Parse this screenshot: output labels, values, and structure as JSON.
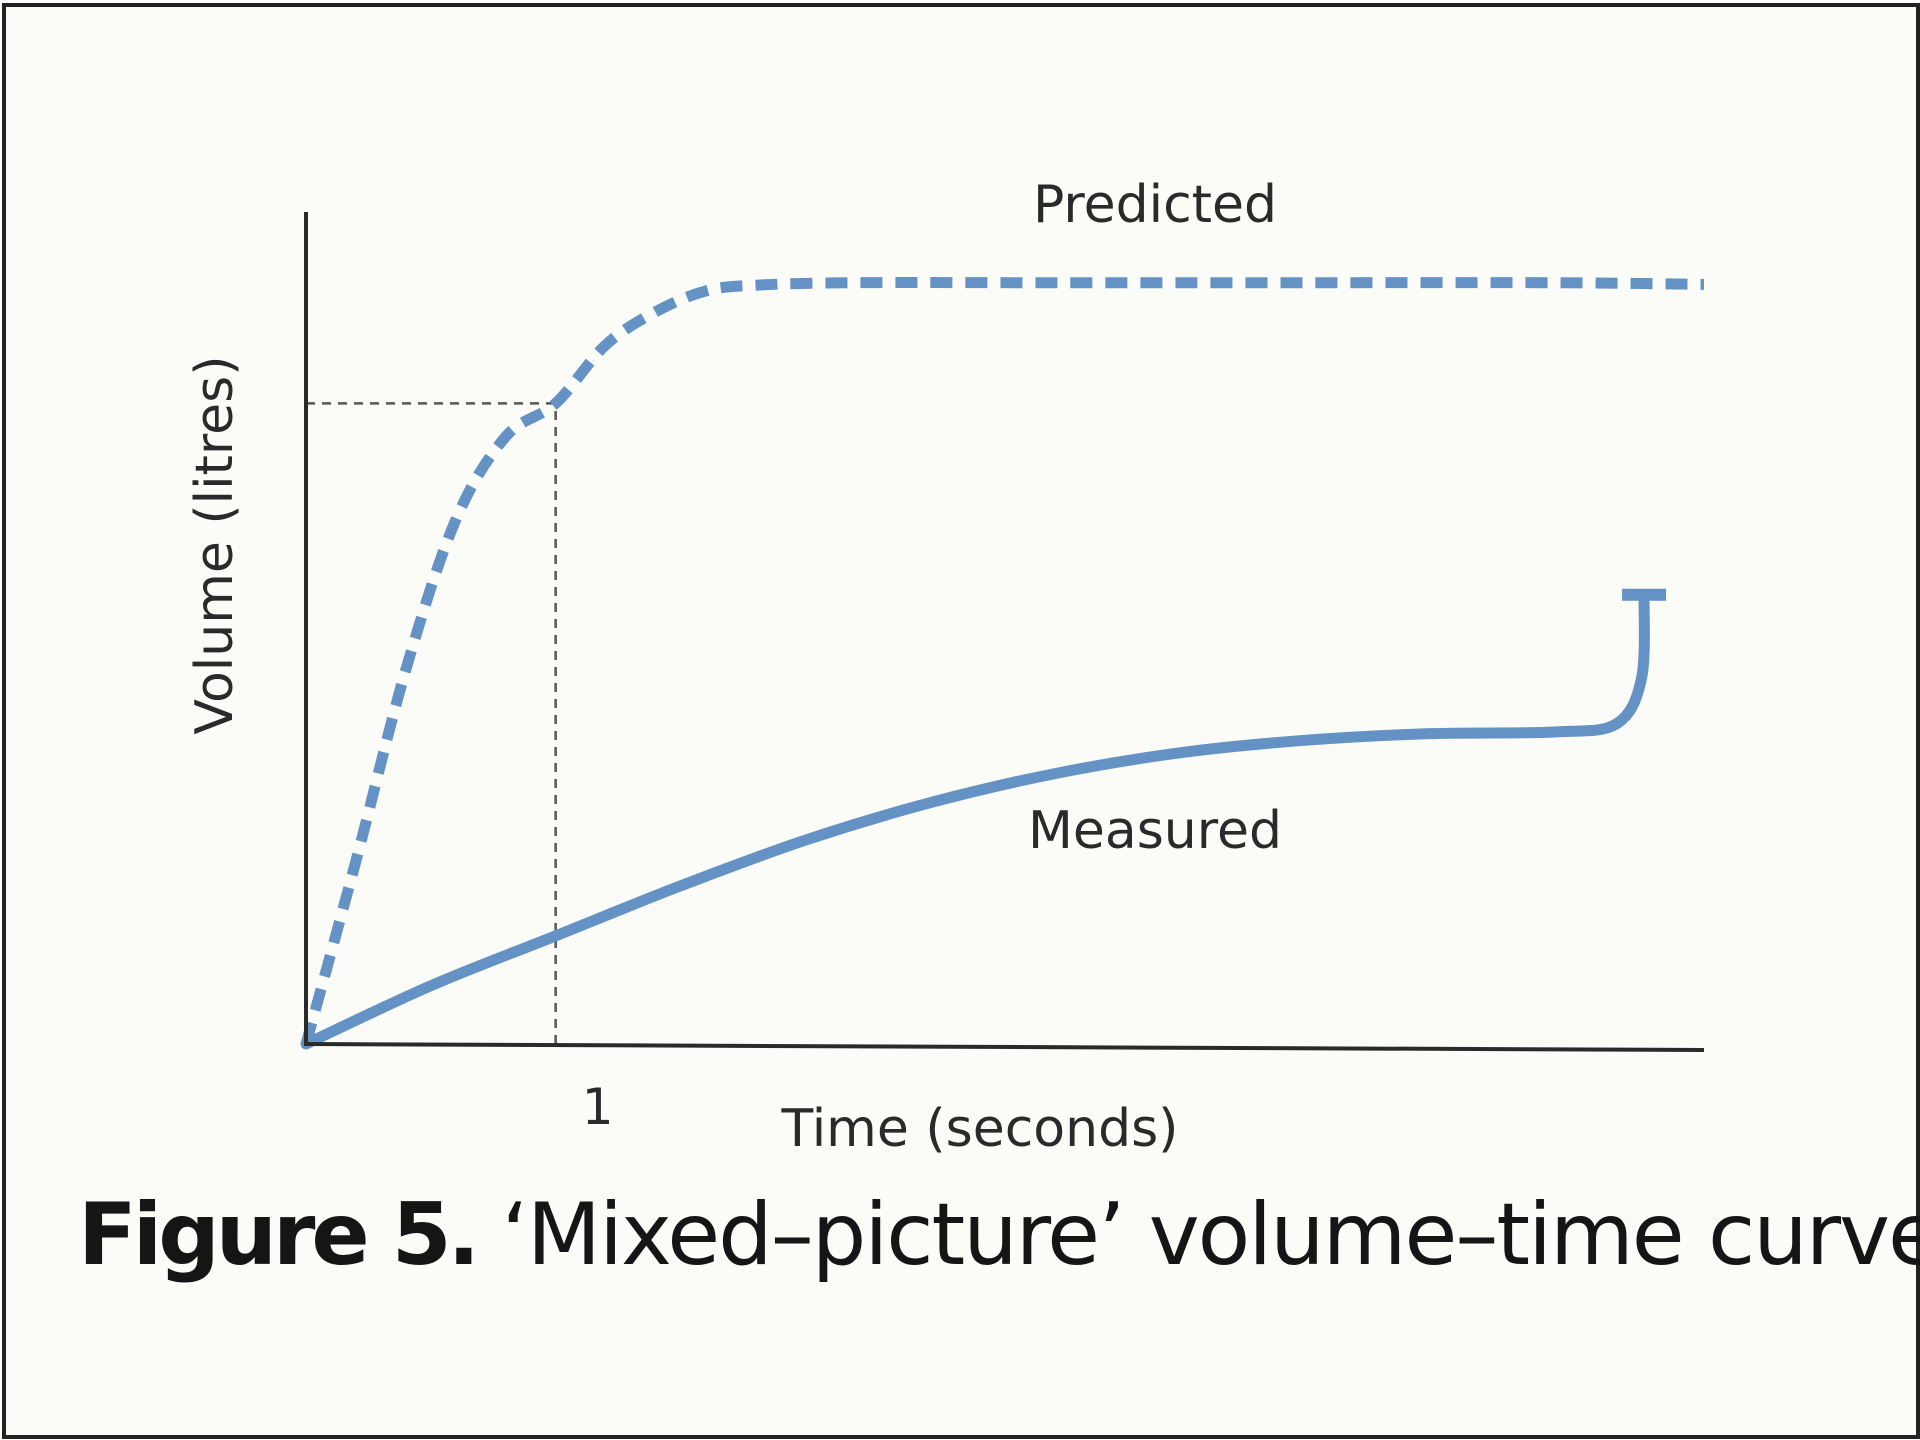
{
  "caption": {
    "label": "Figure 5.",
    "text": "‘Mixed–picture’ volume–time curve"
  },
  "colors": {
    "series": "#6592c4",
    "axis": "#2a2a2a",
    "guide": "#555555",
    "background": "#fbfcf7"
  },
  "chart_data": {
    "type": "line",
    "title": "",
    "xlabel": "Time (seconds)",
    "ylabel": "Volume (litres)",
    "xlim": [
      0,
      5.6
    ],
    "ylim": [
      0,
      1.0
    ],
    "x_ticks": [
      1
    ],
    "grid": false,
    "series": [
      {
        "name": "Predicted",
        "style": "dashed",
        "points": [
          [
            0,
            0
          ],
          [
            0.2,
            0.22
          ],
          [
            0.4,
            0.45
          ],
          [
            0.6,
            0.63
          ],
          [
            0.8,
            0.73
          ],
          [
            1.0,
            0.77
          ],
          [
            1.2,
            0.84
          ],
          [
            1.4,
            0.88
          ],
          [
            1.6,
            0.905
          ],
          [
            1.8,
            0.912
          ],
          [
            2.2,
            0.915
          ],
          [
            3.0,
            0.915
          ],
          [
            4.0,
            0.915
          ],
          [
            5.0,
            0.915
          ],
          [
            5.6,
            0.913
          ]
        ]
      },
      {
        "name": "Measured",
        "style": "solid",
        "points": [
          [
            0,
            0
          ],
          [
            0.5,
            0.07
          ],
          [
            1.0,
            0.13
          ],
          [
            1.5,
            0.19
          ],
          [
            2.0,
            0.245
          ],
          [
            2.5,
            0.29
          ],
          [
            3.0,
            0.325
          ],
          [
            3.5,
            0.35
          ],
          [
            4.0,
            0.365
          ],
          [
            4.5,
            0.373
          ],
          [
            5.0,
            0.375
          ],
          [
            5.25,
            0.385
          ],
          [
            5.35,
            0.44
          ],
          [
            5.36,
            0.54
          ]
        ],
        "end_marker": "bar"
      }
    ],
    "guides": [
      {
        "type": "vertical",
        "x": 1,
        "from_y": 0,
        "to_y": 0.77
      },
      {
        "type": "horizontal",
        "y": 0.77,
        "from_x": 0,
        "to_x": 1
      }
    ]
  }
}
